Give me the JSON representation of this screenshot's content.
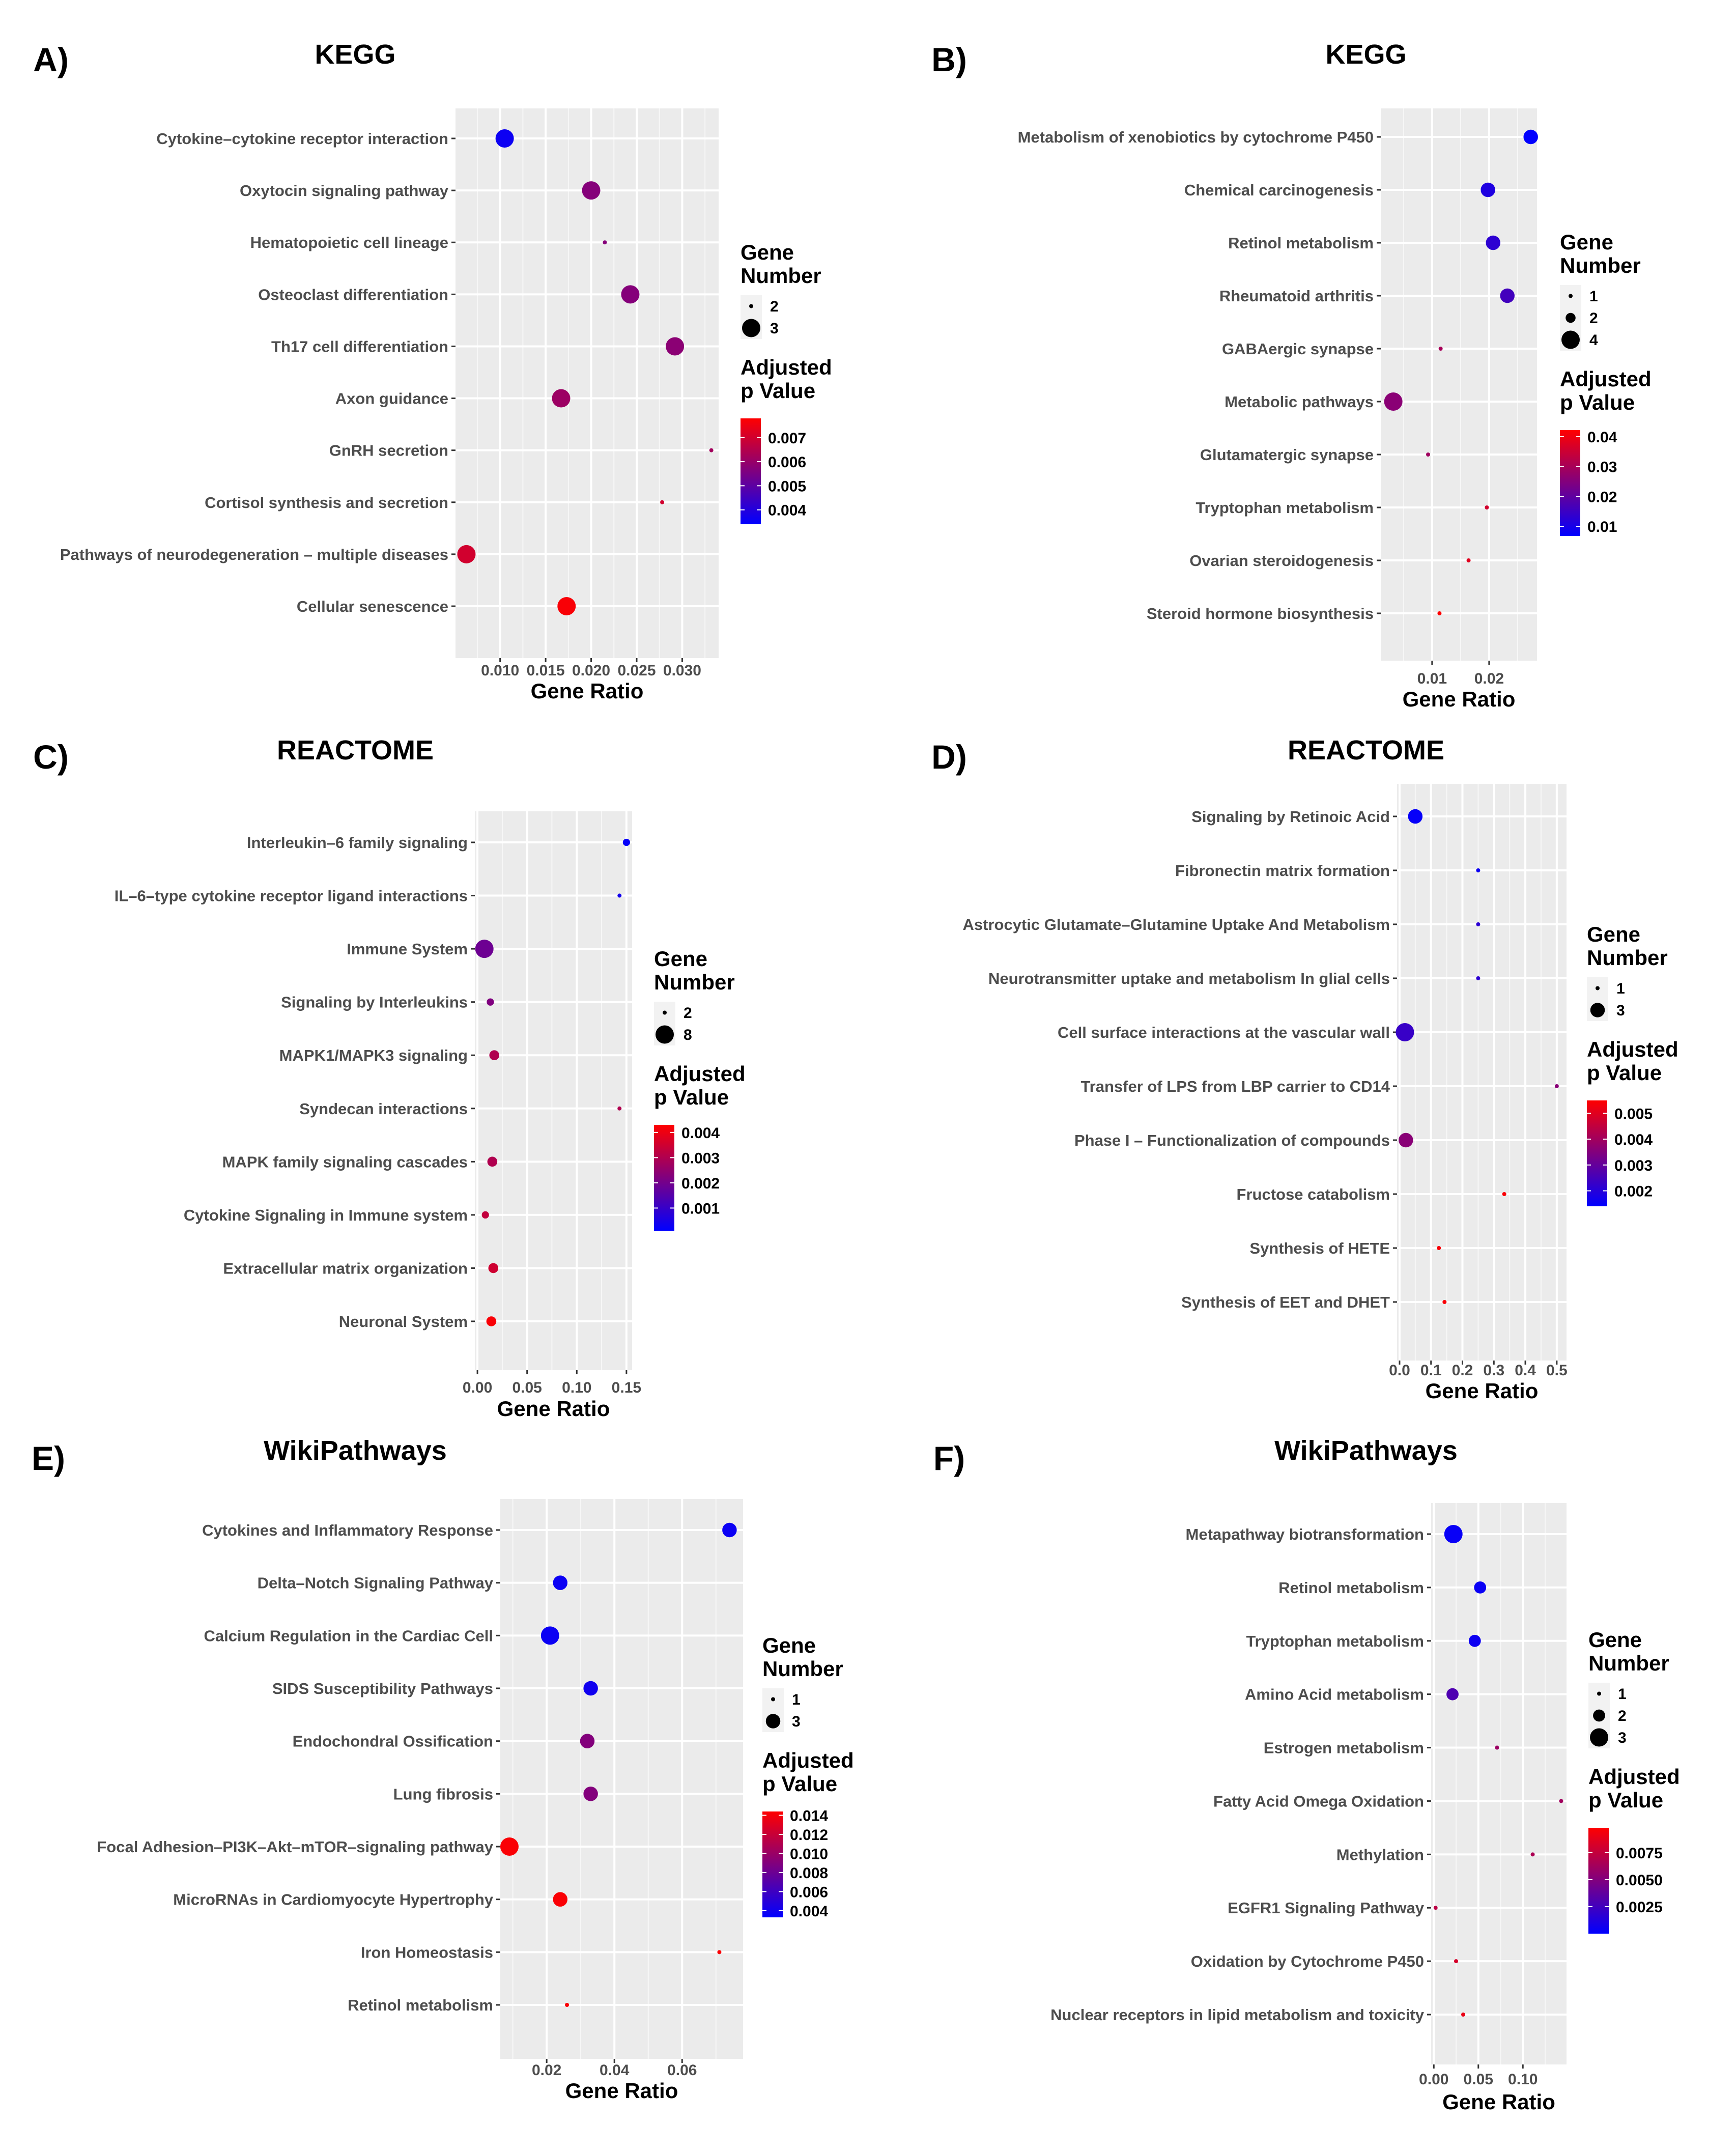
{
  "chart_data": [
    {
      "type": "scatter",
      "panel_label": "A)",
      "title": "KEGG",
      "xlabel": "Gene Ratio",
      "xlim": [
        0.0051,
        0.034
      ],
      "xticks": [
        0.01,
        0.015,
        0.02,
        0.025,
        0.03
      ],
      "xtick_labels": [
        "0.010",
        "0.015",
        "0.020",
        "0.025",
        "0.030"
      ],
      "grid": true,
      "size_legend_title": [
        "Gene",
        "Number"
      ],
      "size_breaks": [
        2,
        3
      ],
      "size_break_labels": [
        "2",
        "3"
      ],
      "color_legend_title": [
        "Adjusted",
        "p Value"
      ],
      "color_range": [
        0.0034,
        0.0078
      ],
      "color_ticks": [
        0.007,
        0.006,
        0.005,
        0.004
      ],
      "color_tick_labels": [
        "0.007",
        "0.006",
        "0.005",
        "0.004"
      ],
      "colors": {
        "low": "#0000ff",
        "high": "#ff0000"
      },
      "points": [
        {
          "term": "Cytokine–cytokine receptor interaction",
          "gene_ratio": 0.0105,
          "gene_number": 3,
          "p_adj": 0.0036
        },
        {
          "term": "Oxytocin signaling pathway",
          "gene_ratio": 0.02,
          "gene_number": 3,
          "p_adj": 0.0057
        },
        {
          "term": "Hematopoietic cell lineage",
          "gene_ratio": 0.0215,
          "gene_number": 2,
          "p_adj": 0.0057
        },
        {
          "term": "Osteoclast differentiation",
          "gene_ratio": 0.0243,
          "gene_number": 3,
          "p_adj": 0.0057
        },
        {
          "term": "Th17 cell differentiation",
          "gene_ratio": 0.0292,
          "gene_number": 3,
          "p_adj": 0.0058
        },
        {
          "term": "Axon guidance",
          "gene_ratio": 0.0167,
          "gene_number": 3,
          "p_adj": 0.0061
        },
        {
          "term": "GnRH secretion",
          "gene_ratio": 0.0332,
          "gene_number": 2,
          "p_adj": 0.0062
        },
        {
          "term": "Cortisol synthesis and secretion",
          "gene_ratio": 0.0278,
          "gene_number": 2,
          "p_adj": 0.007
        },
        {
          "term": "Pathways of neurodegeneration – multiple diseases",
          "gene_ratio": 0.0063,
          "gene_number": 3,
          "p_adj": 0.007
        },
        {
          "term": "Cellular senescence",
          "gene_ratio": 0.0173,
          "gene_number": 3,
          "p_adj": 0.0077
        }
      ]
    },
    {
      "type": "scatter",
      "panel_label": "B)",
      "title": "KEGG",
      "xlabel": "Gene Ratio",
      "xlim": [
        0.001,
        0.0284
      ],
      "xticks": [
        0.01,
        0.02
      ],
      "xtick_labels": [
        "0.01",
        "0.02"
      ],
      "grid": true,
      "size_legend_title": [
        "Gene",
        "Number"
      ],
      "size_breaks": [
        1,
        2,
        4
      ],
      "size_break_labels": [
        "1",
        "2",
        "4"
      ],
      "color_legend_title": [
        "Adjusted",
        "p Value"
      ],
      "color_range": [
        0.0068,
        0.0422
      ],
      "color_ticks": [
        0.04,
        0.03,
        0.02,
        0.01
      ],
      "color_tick_labels": [
        "0.04",
        "0.03",
        "0.02",
        "0.01"
      ],
      "colors": {
        "low": "#0000ff",
        "high": "#ff0000"
      },
      "points": [
        {
          "term": "Metabolism of xenobiotics by cytochrome P450",
          "gene_ratio": 0.0273,
          "gene_number": 3,
          "p_adj": 0.007
        },
        {
          "term": "Chemical carcinogenesis",
          "gene_ratio": 0.0198,
          "gene_number": 3,
          "p_adj": 0.011
        },
        {
          "term": "Retinol metabolism",
          "gene_ratio": 0.0207,
          "gene_number": 3,
          "p_adj": 0.013
        },
        {
          "term": "Rheumatoid arthritis",
          "gene_ratio": 0.0232,
          "gene_number": 3,
          "p_adj": 0.016
        },
        {
          "term": "GABAergic synapse",
          "gene_ratio": 0.0115,
          "gene_number": 1,
          "p_adj": 0.03
        },
        {
          "term": "Metabolic pathways",
          "gene_ratio": 0.0032,
          "gene_number": 4,
          "p_adj": 0.026
        },
        {
          "term": "Glutamatergic synapse",
          "gene_ratio": 0.0093,
          "gene_number": 1,
          "p_adj": 0.029
        },
        {
          "term": "Tryptophan metabolism",
          "gene_ratio": 0.0196,
          "gene_number": 1,
          "p_adj": 0.036
        },
        {
          "term": "Ovarian steroidogenesis",
          "gene_ratio": 0.0164,
          "gene_number": 1,
          "p_adj": 0.038
        },
        {
          "term": "Steroid hormone biosynthesis",
          "gene_ratio": 0.0113,
          "gene_number": 1,
          "p_adj": 0.042
        }
      ]
    },
    {
      "type": "scatter",
      "panel_label": "C)",
      "title": "REACTOME",
      "xlabel": "Gene Ratio",
      "xlim": [
        -0.0026,
        0.1557
      ],
      "xticks": [
        0.0,
        0.05,
        0.1,
        0.15
      ],
      "xtick_labels": [
        "0.00",
        "0.05",
        "0.10",
        "0.15"
      ],
      "grid": true,
      "size_legend_title": [
        "Gene",
        "Number"
      ],
      "size_breaks": [
        2,
        8
      ],
      "size_break_labels": [
        "2",
        "8"
      ],
      "color_legend_title": [
        "Adjusted",
        "p Value"
      ],
      "color_range": [
        0.0001,
        0.0043
      ],
      "color_ticks": [
        0.004,
        0.003,
        0.002,
        0.001
      ],
      "color_tick_labels": [
        "0.004",
        "0.003",
        "0.002",
        "0.001"
      ],
      "colors": {
        "low": "#0000ff",
        "high": "#ff0000"
      },
      "points": [
        {
          "term": "Interleukin–6 family signaling",
          "gene_ratio": 0.15,
          "gene_number": 3,
          "p_adj": 0.0002
        },
        {
          "term": "IL–6–type cytokine receptor ligand interactions",
          "gene_ratio": 0.143,
          "gene_number": 2,
          "p_adj": 0.0004
        },
        {
          "term": "Immune System",
          "gene_ratio": 0.007,
          "gene_number": 8,
          "p_adj": 0.0019
        },
        {
          "term": "Signaling by Interleukins",
          "gene_ratio": 0.013,
          "gene_number": 3,
          "p_adj": 0.0022
        },
        {
          "term": "MAPK1/MAPK3 signaling",
          "gene_ratio": 0.017,
          "gene_number": 4,
          "p_adj": 0.003
        },
        {
          "term": "Syndecan interactions",
          "gene_ratio": 0.143,
          "gene_number": 2,
          "p_adj": 0.003
        },
        {
          "term": "MAPK family signaling cascades",
          "gene_ratio": 0.015,
          "gene_number": 4,
          "p_adj": 0.003
        },
        {
          "term": "Cytokine Signaling in Immune system",
          "gene_ratio": 0.008,
          "gene_number": 3,
          "p_adj": 0.0033
        },
        {
          "term": "Extracellular matrix organization",
          "gene_ratio": 0.016,
          "gene_number": 4,
          "p_adj": 0.0035
        },
        {
          "term": "Neuronal System",
          "gene_ratio": 0.014,
          "gene_number": 4,
          "p_adj": 0.0042
        }
      ]
    },
    {
      "type": "scatter",
      "panel_label": "D)",
      "title": "REACTOME",
      "xlabel": "Gene Ratio",
      "xlim": [
        -0.008,
        0.531
      ],
      "xticks": [
        0.0,
        0.1,
        0.2,
        0.3,
        0.4,
        0.5
      ],
      "xtick_labels": [
        "0.0",
        "0.1",
        "0.2",
        "0.3",
        "0.4",
        "0.5"
      ],
      "grid": true,
      "size_legend_title": [
        "Gene",
        "Number"
      ],
      "size_breaks": [
        1,
        3
      ],
      "size_break_labels": [
        "1",
        "3"
      ],
      "color_legend_title": [
        "Adjusted",
        "p Value"
      ],
      "color_range": [
        0.0014,
        0.0055
      ],
      "color_ticks": [
        0.005,
        0.004,
        0.003,
        0.002
      ],
      "color_tick_labels": [
        "0.005",
        "0.004",
        "0.003",
        "0.002"
      ],
      "colors": {
        "low": "#0000ff",
        "high": "#ff0000"
      },
      "points": [
        {
          "term": "Signaling by Retinoic Acid",
          "gene_ratio": 0.05,
          "gene_number": 3,
          "p_adj": 0.0015
        },
        {
          "term": "Fibronectin matrix formation",
          "gene_ratio": 0.25,
          "gene_number": 1,
          "p_adj": 0.0016
        },
        {
          "term": "Astrocytic Glutamate–Glutamine Uptake And Metabolism",
          "gene_ratio": 0.25,
          "gene_number": 1,
          "p_adj": 0.0021
        },
        {
          "term": "Neurotransmitter uptake and metabolism In glial cells",
          "gene_ratio": 0.25,
          "gene_number": 1,
          "p_adj": 0.0021
        },
        {
          "term": "Cell surface interactions at the vascular wall",
          "gene_ratio": 0.017,
          "gene_number": 4,
          "p_adj": 0.0023
        },
        {
          "term": "Transfer of LPS from LBP carrier to CD14",
          "gene_ratio": 0.5,
          "gene_number": 1,
          "p_adj": 0.0036
        },
        {
          "term": "Phase I – Functionalization of compounds",
          "gene_ratio": 0.02,
          "gene_number": 3,
          "p_adj": 0.0036
        },
        {
          "term": "Fructose catabolism",
          "gene_ratio": 0.333,
          "gene_number": 1,
          "p_adj": 0.0054
        },
        {
          "term": "Synthesis of HETE",
          "gene_ratio": 0.125,
          "gene_number": 1,
          "p_adj": 0.0054
        },
        {
          "term": "Synthesis of EET and DHET",
          "gene_ratio": 0.143,
          "gene_number": 1,
          "p_adj": 0.0054
        }
      ]
    },
    {
      "type": "scatter",
      "panel_label": "E)",
      "title": "WikiPathways",
      "xlabel": "Gene Ratio",
      "xlim": [
        0.0063,
        0.078
      ],
      "xticks": [
        0.02,
        0.04,
        0.06
      ],
      "xtick_labels": [
        "0.02",
        "0.04",
        "0.06"
      ],
      "grid": true,
      "size_legend_title": [
        "Gene",
        "Number"
      ],
      "size_breaks": [
        1,
        3
      ],
      "size_break_labels": [
        "1",
        "3"
      ],
      "color_legend_title": [
        "Adjusted",
        "p Value"
      ],
      "color_range": [
        0.0033,
        0.0144
      ],
      "color_ticks": [
        0.014,
        0.012,
        0.01,
        0.008,
        0.006,
        0.004
      ],
      "color_tick_labels": [
        "0.014",
        "0.012",
        "0.010",
        "0.008",
        "0.006",
        "0.004"
      ],
      "colors": {
        "low": "#0000ff",
        "high": "#ff0000"
      },
      "points": [
        {
          "term": "Cytokines and Inflammatory Response",
          "gene_ratio": 0.074,
          "gene_number": 3,
          "p_adj": 0.0038
        },
        {
          "term": "Delta–Notch Signaling Pathway",
          "gene_ratio": 0.024,
          "gene_number": 3,
          "p_adj": 0.0038
        },
        {
          "term": "Calcium Regulation in the Cardiac Cell",
          "gene_ratio": 0.021,
          "gene_number": 4,
          "p_adj": 0.0038
        },
        {
          "term": "SIDS Susceptibility Pathways",
          "gene_ratio": 0.033,
          "gene_number": 3,
          "p_adj": 0.004
        },
        {
          "term": "Endochondral Ossification",
          "gene_ratio": 0.032,
          "gene_number": 3,
          "p_adj": 0.009
        },
        {
          "term": "Lung fibrosis",
          "gene_ratio": 0.033,
          "gene_number": 3,
          "p_adj": 0.009
        },
        {
          "term": "Focal Adhesion–PI3K–Akt–mTOR–signaling pathway",
          "gene_ratio": 0.009,
          "gene_number": 4,
          "p_adj": 0.0142
        },
        {
          "term": "MicroRNAs in Cardiomyocyte Hypertrophy",
          "gene_ratio": 0.024,
          "gene_number": 3,
          "p_adj": 0.0142
        },
        {
          "term": "Iron Homeostasis",
          "gene_ratio": 0.071,
          "gene_number": 1,
          "p_adj": 0.0142
        },
        {
          "term": "Retinol metabolism",
          "gene_ratio": 0.026,
          "gene_number": 1,
          "p_adj": 0.0142
        }
      ]
    },
    {
      "type": "scatter",
      "panel_label": "F)",
      "title": "WikiPathways",
      "xlabel": "Gene Ratio",
      "xlim": [
        -0.003,
        0.149
      ],
      "xticks": [
        0.0,
        0.05,
        0.1
      ],
      "xtick_labels": [
        "0.00",
        "0.05",
        "0.10"
      ],
      "grid": true,
      "size_legend_title": [
        "Gene",
        "Number"
      ],
      "size_breaks": [
        1,
        2,
        3
      ],
      "size_break_labels": [
        "1",
        "2",
        "3"
      ],
      "color_legend_title": [
        "Adjusted",
        "p Value"
      ],
      "color_range": [
        0.0,
        0.0098
      ],
      "color_ticks": [
        0.0075,
        0.005,
        0.0025
      ],
      "color_tick_labels": [
        "0.0075",
        "0.0050",
        "0.0025"
      ],
      "colors": {
        "low": "#0000ff",
        "high": "#ff0000"
      },
      "points": [
        {
          "term": "Metapathway biotransformation",
          "gene_ratio": 0.022,
          "gene_number": 3,
          "p_adj": 0.0003
        },
        {
          "term": "Retinol metabolism",
          "gene_ratio": 0.052,
          "gene_number": 2,
          "p_adj": 0.0004
        },
        {
          "term": "Tryptophan metabolism",
          "gene_ratio": 0.046,
          "gene_number": 2,
          "p_adj": 0.0005
        },
        {
          "term": "Amino Acid metabolism",
          "gene_ratio": 0.021,
          "gene_number": 2,
          "p_adj": 0.003
        },
        {
          "term": "Estrogen metabolism",
          "gene_ratio": 0.071,
          "gene_number": 1,
          "p_adj": 0.006
        },
        {
          "term": "Fatty Acid Omega Oxidation",
          "gene_ratio": 0.143,
          "gene_number": 1,
          "p_adj": 0.0062
        },
        {
          "term": "Methylation",
          "gene_ratio": 0.111,
          "gene_number": 1,
          "p_adj": 0.0066
        },
        {
          "term": "EGFR1 Signaling Pathway",
          "gene_ratio": 0.002,
          "gene_number": 1,
          "p_adj": 0.0072
        },
        {
          "term": "Oxidation by Cytochrome P450",
          "gene_ratio": 0.025,
          "gene_number": 1,
          "p_adj": 0.0082
        },
        {
          "term": "Nuclear receptors in lipid metabolism and toxicity",
          "gene_ratio": 0.033,
          "gene_number": 1,
          "p_adj": 0.009
        }
      ]
    }
  ]
}
